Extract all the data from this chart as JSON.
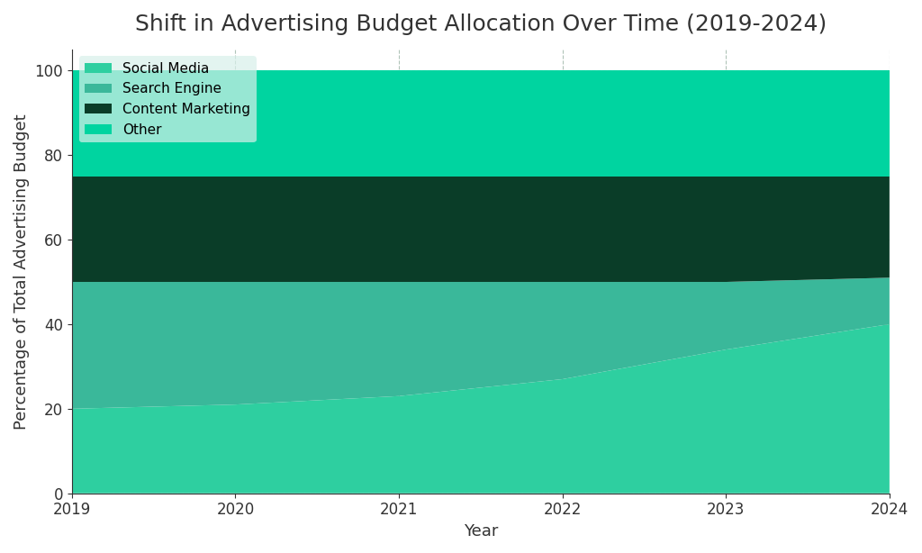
{
  "title": "Shift in Advertising Budget Allocation Over Time (2019-2024)",
  "xlabel": "Year",
  "ylabel": "Percentage of Total Advertising Budget",
  "years": [
    2019,
    2020,
    2021,
    2022,
    2023,
    2024
  ],
  "categories": [
    "Other",
    "Social Media",
    "Content Marketing",
    "Search Engine"
  ],
  "values": {
    "Other": [
      20,
      21,
      23,
      27,
      34,
      40
    ],
    "Social Media": [
      30,
      29,
      27,
      23,
      16,
      11
    ],
    "Content Marketing": [
      25,
      25,
      25,
      25,
      25,
      24
    ],
    "Search Engine": [
      25,
      25,
      25,
      25,
      25,
      25
    ]
  },
  "colors": {
    "Other": "#2ecfa0",
    "Social Media": "#3ab89a",
    "Content Marketing": "#0a3d28",
    "Search Engine": "#00d4a0"
  },
  "legend_order": [
    "Social Media",
    "Search Engine",
    "Content Marketing",
    "Other"
  ],
  "legend_colors": {
    "Social Media": "#2ecfa0",
    "Search Engine": "#3ab89a",
    "Content Marketing": "#0a3d28",
    "Other": "#00d4a0"
  },
  "ylim": [
    0,
    105
  ],
  "yticks": [
    0,
    20,
    40,
    60,
    80,
    100
  ],
  "background_color": "#ffffff",
  "grid_color": "#b0c4b8",
  "title_fontsize": 18,
  "label_fontsize": 13,
  "tick_fontsize": 12
}
